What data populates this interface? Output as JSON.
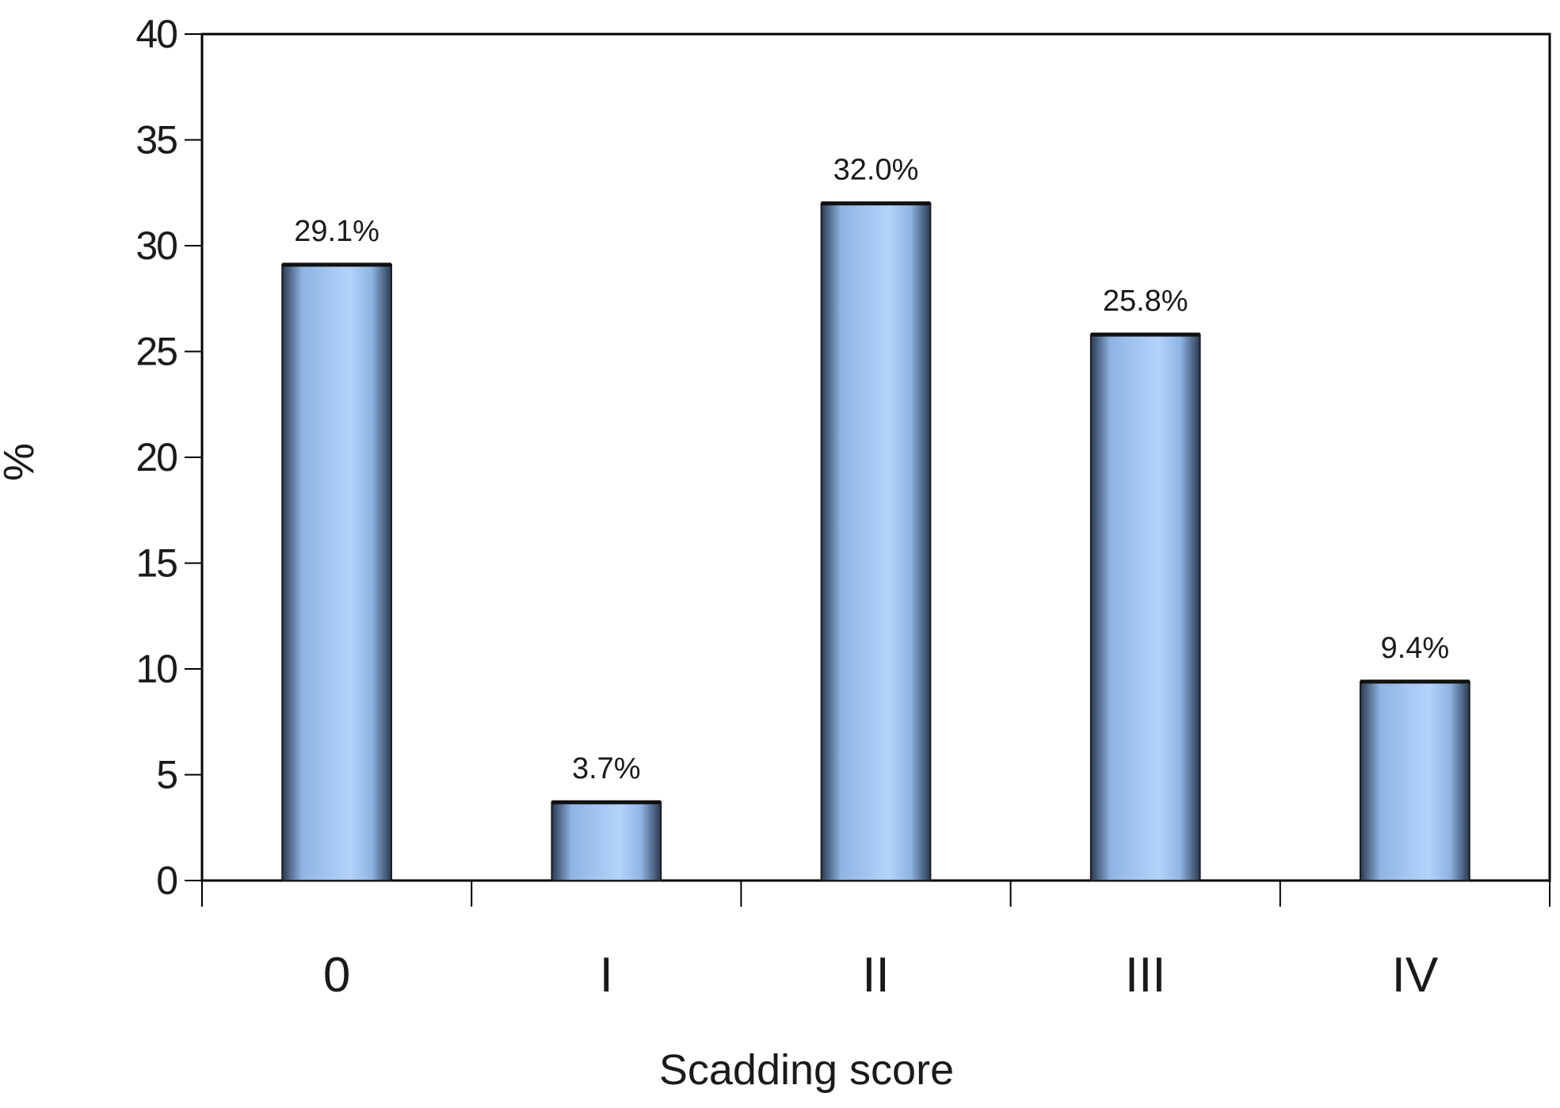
{
  "chart_data": {
    "type": "bar",
    "categories": [
      "0",
      "I",
      "II",
      "III",
      "IV"
    ],
    "values": [
      29.1,
      3.7,
      32.0,
      25.8,
      9.4
    ],
    "data_labels": [
      "29.1%",
      "3.7%",
      "32.0%",
      "25.8%",
      "9.4%"
    ],
    "title": "",
    "xlabel": "Scadding score",
    "ylabel": "%",
    "ylim": [
      0,
      40
    ],
    "yticks": [
      0,
      5,
      10,
      15,
      20,
      25,
      30,
      35,
      40
    ],
    "grid": false,
    "legend": "none",
    "bar_color": "#8fb4e3",
    "bar_highlight": "#b3d3fb",
    "bar_shadow": "#2a3a52"
  }
}
